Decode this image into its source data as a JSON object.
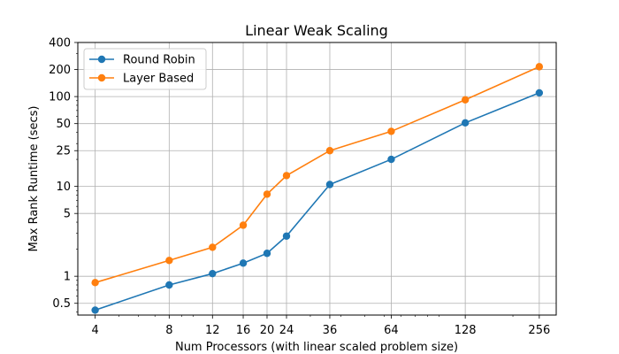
{
  "chart_data": {
    "type": "line",
    "title": "Linear Weak Scaling",
    "xlabel": "Num Processors (with linear scaled problem size)",
    "ylabel": "Max Rank Runtime (secs)",
    "x_scale": "log",
    "y_scale": "log",
    "x": [
      4,
      8,
      12,
      16,
      20,
      24,
      36,
      64,
      128,
      256
    ],
    "x_tick_labels": [
      "4",
      "8",
      "12",
      "16",
      "20",
      "24",
      "36",
      "64",
      "128",
      "256"
    ],
    "y_ticks": [
      0.5,
      1,
      5,
      10,
      25,
      50,
      100,
      200,
      400
    ],
    "y_tick_labels": [
      "0.5",
      "1",
      "5",
      "10",
      "25",
      "50",
      "100",
      "200",
      "400"
    ],
    "xlim": [
      3.4,
      300
    ],
    "ylim": [
      0.37,
      400
    ],
    "grid": true,
    "legend_position": "top-left",
    "series": [
      {
        "name": "Round Robin",
        "color": "#1f77b4",
        "values": [
          0.42,
          0.8,
          1.07,
          1.4,
          1.8,
          2.8,
          10.5,
          20.0,
          51.0,
          110.0
        ]
      },
      {
        "name": "Layer Based",
        "color": "#ff7f0e",
        "values": [
          0.85,
          1.5,
          2.1,
          3.7,
          8.2,
          13.2,
          25.0,
          41.0,
          92.0,
          215.0
        ]
      }
    ]
  }
}
